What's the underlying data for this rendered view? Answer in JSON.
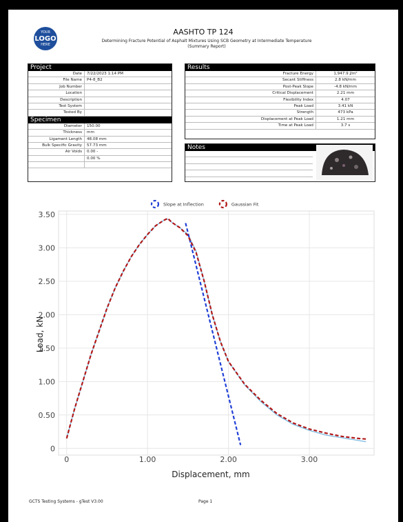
{
  "header": {
    "logo": [
      "YOUR",
      "LOGO",
      "HERE"
    ],
    "title": "AASHTO TP 124",
    "subtitle": "Determining Fracture Potential of Asphalt Mixtures Using SCB Geometry at Intermediate Temperature (Summary Report)"
  },
  "project": {
    "title": "Project",
    "rows": [
      {
        "label": "Date",
        "value": "7/22/2023 1:14 PM"
      },
      {
        "label": "File Name",
        "value": "P4-8_B2"
      },
      {
        "label": "Job Number"
      },
      {
        "label": "Location"
      },
      {
        "label": "Description"
      },
      {
        "label": "Test System"
      },
      {
        "label": "Tested By"
      }
    ]
  },
  "specimen": {
    "title": "Specimen",
    "rows": [
      {
        "label": "Diameter",
        "value": "150.00"
      },
      {
        "label": "Thickness",
        "value": "mm"
      },
      {
        "label": "Ligament Length",
        "value": "48.08 mm"
      },
      {
        "label": "Bulk Specific Gravity",
        "value": "57.73 mm"
      },
      {
        "label": "Air Voids",
        "value": "0.00 -"
      },
      {
        "value": "0.00 %"
      },
      {}
    ]
  },
  "results": {
    "title": "Results",
    "rows": [
      {
        "label": "Fracture Energy",
        "value": "1,947.9 J/m²"
      },
      {
        "label": "Secant Stiffness",
        "value": "2.8 kN/mm"
      },
      {
        "label": "Post-Peak Slope",
        "value": "-4.8 kN/mm"
      },
      {
        "label": "Critical Displacement",
        "value": "2.21 mm"
      },
      {
        "label": "Flexibility Index",
        "value": "4.07"
      },
      {
        "label": "Peak Load",
        "value": "3.41 kN"
      },
      {
        "label": "Strength",
        "value": "473 kPa"
      },
      {
        "label": "Displacement at Peak Load",
        "value": "1.21 mm"
      },
      {
        "label": "Time at Peak Load",
        "value": "3.7 s"
      }
    ]
  },
  "notes": {
    "title": "Notes"
  },
  "chart_data": {
    "type": "line",
    "x_label": "Displacement, mm",
    "y_label": "Load, kN",
    "xlim": [
      -0.1,
      3.8
    ],
    "ylim": [
      -0.1,
      3.55
    ],
    "xticks": [
      0,
      {
        "value": 1,
        "label": "1.00"
      },
      {
        "value": 2,
        "label": "2.00"
      },
      {
        "value": 3,
        "label": "3.00"
      }
    ],
    "yticks": [
      0,
      {
        "value": 0.5,
        "label": "0.50"
      },
      {
        "value": 1,
        "label": "1.00"
      },
      {
        "value": 1.5,
        "label": "1.50"
      },
      {
        "value": 2,
        "label": "2.00"
      },
      {
        "value": 2.5,
        "label": "2.50"
      },
      {
        "value": 3,
        "label": "3.00"
      },
      {
        "value": 3.5,
        "label": "3.50"
      }
    ],
    "grid": true,
    "legend": "top",
    "series": [
      {
        "color": "#7ab8e0",
        "dash": false,
        "x": [
          0,
          0.1,
          0.2,
          0.3,
          0.4,
          0.5,
          0.6,
          0.7,
          0.8,
          0.9,
          1.0,
          1.1,
          1.2,
          1.25,
          1.3,
          1.4,
          1.5,
          1.6,
          1.7,
          1.8,
          1.9,
          2.0,
          2.2,
          2.4,
          2.6,
          2.8,
          3.0,
          3.2,
          3.4,
          3.6,
          3.7
        ],
        "values": [
          0.15,
          0.6,
          1.0,
          1.4,
          1.75,
          2.1,
          2.4,
          2.65,
          2.87,
          3.05,
          3.2,
          3.33,
          3.41,
          3.43,
          3.38,
          3.3,
          3.2,
          2.95,
          2.5,
          2.0,
          1.6,
          1.3,
          0.95,
          0.7,
          0.5,
          0.36,
          0.27,
          0.2,
          0.16,
          0.12,
          0.1
        ]
      },
      {
        "name": "Slope at Inflection",
        "color": "#1f3fd6",
        "dash": true,
        "x": [
          1.47,
          2.15
        ],
        "values": [
          3.37,
          0.05
        ]
      },
      {
        "name": "Gaussian Fit",
        "color": "#b01818",
        "dash": true,
        "x": [
          0,
          0.1,
          0.2,
          0.3,
          0.4,
          0.5,
          0.6,
          0.7,
          0.8,
          0.9,
          1.0,
          1.1,
          1.2,
          1.25,
          1.3,
          1.4,
          1.5,
          1.6,
          1.7,
          1.8,
          1.9,
          2.0,
          2.2,
          2.4,
          2.6,
          2.8,
          3.0,
          3.2,
          3.4,
          3.6,
          3.7
        ],
        "values": [
          0.15,
          0.6,
          1.0,
          1.4,
          1.75,
          2.1,
          2.4,
          2.65,
          2.87,
          3.05,
          3.2,
          3.33,
          3.41,
          3.44,
          3.38,
          3.3,
          3.18,
          2.93,
          2.5,
          2.0,
          1.6,
          1.3,
          0.96,
          0.72,
          0.52,
          0.38,
          0.29,
          0.23,
          0.18,
          0.15,
          0.14
        ]
      }
    ]
  },
  "footer": {
    "left": "GCTS Testing Systems - gTest V3.00",
    "page": "Page 1"
  }
}
